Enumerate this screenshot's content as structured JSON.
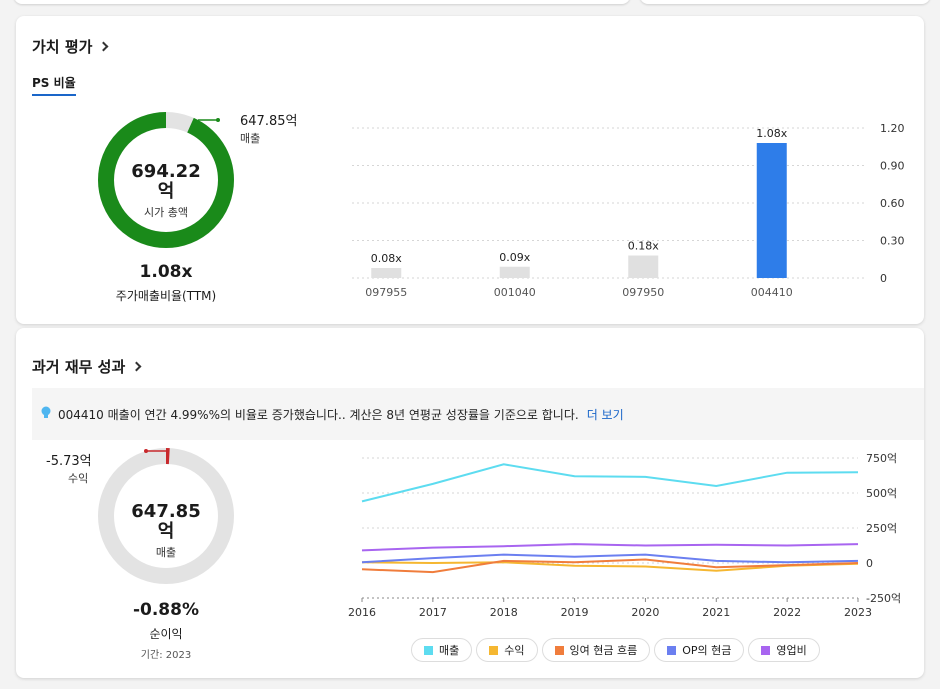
{
  "valuation": {
    "title": "가치 평가",
    "tab": "PS 비율",
    "donut": {
      "revenue_value": "647.85억",
      "revenue_label": "매출",
      "center_value": "694.22",
      "center_unit": "억",
      "center_label": "시가 총액",
      "revenue_share": 0.933
    },
    "ratio_value": "1.08x",
    "ratio_label": "주가매출비율(TTM)"
  },
  "ps_chart": {
    "type": "bar",
    "categories": [
      "097955",
      "001040",
      "097950",
      "004410"
    ],
    "values": [
      0.08,
      0.09,
      0.18,
      1.08
    ],
    "value_labels": [
      "0.08x",
      "0.09x",
      "0.18x",
      "1.08x"
    ],
    "yticks": [
      "1.20",
      "0.90",
      "0.60",
      "0.30",
      "0"
    ],
    "ylim": [
      0,
      1.2
    ],
    "highlight": "004410",
    "colors": {
      "default": "#e0e0e0",
      "highlight": "#2e7de9"
    }
  },
  "performance": {
    "title": "과거 재무 성과",
    "banner_text": "004410 매출이 연간 4.99%%의 비율로 증가했습니다.. 계산은 8년 연평균 성장률을 기준으로 합니다.",
    "banner_link": "더 보기",
    "donut": {
      "profit_value": "-5.73억",
      "profit_label": "수익",
      "center_value": "647.85",
      "center_unit": "억",
      "center_label": "매출",
      "profit_share": 0.0088
    },
    "margin_value": "-0.88%",
    "margin_label": "순이익",
    "period": "기간: 2023"
  },
  "chart_data": {
    "type": "line",
    "x": [
      "2016",
      "2017",
      "2018",
      "2019",
      "2020",
      "2021",
      "2022",
      "2023"
    ],
    "yticks": [
      "750억",
      "500억",
      "250억",
      "0",
      "-250억"
    ],
    "ylim": [
      -250,
      750
    ],
    "series": [
      {
        "name": "매출",
        "color": "#5ddcf0",
        "values": [
          440,
          565,
          705,
          620,
          615,
          550,
          645,
          648
        ]
      },
      {
        "name": "수익",
        "color": "#f5b731",
        "values": [
          5,
          0,
          5,
          -20,
          -25,
          -55,
          -20,
          -5.73
        ]
      },
      {
        "name": "잉여 현금 흐름",
        "color": "#f07d3c",
        "values": [
          -45,
          -65,
          15,
          5,
          25,
          -30,
          -15,
          0
        ]
      },
      {
        "name": "OP의 현금",
        "color": "#6b7ff0",
        "values": [
          5,
          35,
          60,
          45,
          60,
          15,
          5,
          15
        ]
      },
      {
        "name": "영업비",
        "color": "#a865f0",
        "values": [
          90,
          110,
          120,
          135,
          125,
          130,
          125,
          135
        ]
      }
    ]
  }
}
